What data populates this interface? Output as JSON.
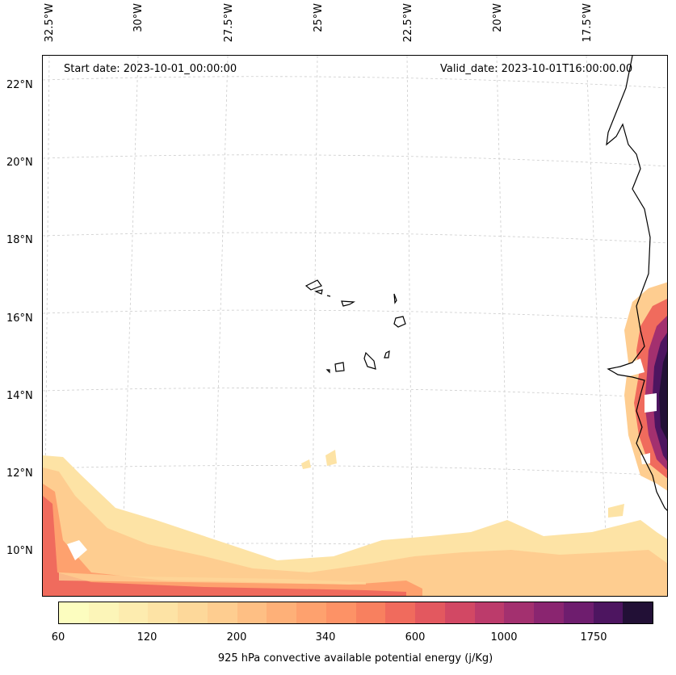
{
  "header": {
    "start_date": "Start date: 2023-10-01_00:00:00",
    "valid_date": "Valid_date: 2023-10-01T16:00:00.00"
  },
  "axes": {
    "lat_labels": [
      "22°N",
      "20°N",
      "18°N",
      "16°N",
      "14°N",
      "12°N",
      "10°N"
    ],
    "lon_labels": [
      "32.5°W",
      "30°W",
      "27.5°W",
      "25°W",
      "22.5°W",
      "20°W",
      "17.5°W"
    ],
    "gridlines": true
  },
  "colorbar": {
    "title": "925 hPa convective available potential energy (j/Kg)",
    "tick_labels": [
      "60",
      "120",
      "200",
      "340",
      "600",
      "1000",
      "1750"
    ],
    "colors": [
      "#fcfdbf",
      "#fcf5b8",
      "#fdecaf",
      "#fde3a5",
      "#fdd89a",
      "#fecd90",
      "#febf84",
      "#feb078",
      "#fea16e",
      "#fd9266",
      "#f8805f",
      "#f06b5d",
      "#e3585f",
      "#d24864",
      "#bc3b6b",
      "#a3306f",
      "#8a2570",
      "#6e1d6e",
      "#4d1560",
      "#221036"
    ]
  },
  "colors": {
    "coastline": "#000000",
    "gridline": "#cccccc"
  }
}
